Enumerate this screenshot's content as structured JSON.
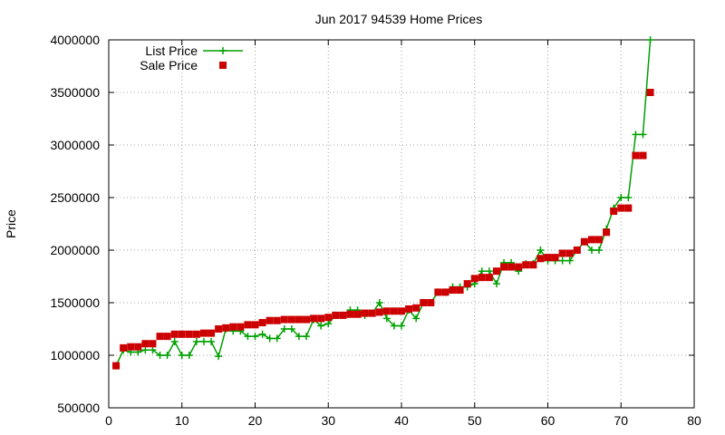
{
  "chart_data": {
    "type": "line",
    "title": "Jun 2017 94539 Home Prices",
    "xlabel": "",
    "ylabel": "Price",
    "xlim": [
      0,
      80
    ],
    "ylim": [
      500000,
      4000000
    ],
    "xticks": [
      0,
      10,
      20,
      30,
      40,
      50,
      60,
      70,
      80
    ],
    "yticks": [
      500000,
      1000000,
      1500000,
      2000000,
      2500000,
      3000000,
      3500000,
      4000000
    ],
    "grid": true,
    "legend_position": "top-left",
    "series": [
      {
        "name": "List Price",
        "style": "line with plus markers",
        "color": "#00a000",
        "points": [
          [
            1,
            900000
          ],
          [
            2,
            1050000
          ],
          [
            3,
            1030000
          ],
          [
            4,
            1030000
          ],
          [
            5,
            1050000
          ],
          [
            6,
            1050000
          ],
          [
            7,
            1000000
          ],
          [
            8,
            1000000
          ],
          [
            9,
            1130000
          ],
          [
            10,
            1000000
          ],
          [
            11,
            1000000
          ],
          [
            12,
            1130000
          ],
          [
            13,
            1130000
          ],
          [
            14,
            1130000
          ],
          [
            15,
            990000
          ],
          [
            16,
            1250000
          ],
          [
            17,
            1230000
          ],
          [
            18,
            1230000
          ],
          [
            19,
            1180000
          ],
          [
            20,
            1180000
          ],
          [
            21,
            1200000
          ],
          [
            22,
            1160000
          ],
          [
            23,
            1160000
          ],
          [
            24,
            1250000
          ],
          [
            25,
            1250000
          ],
          [
            26,
            1180000
          ],
          [
            27,
            1180000
          ],
          [
            28,
            1340000
          ],
          [
            29,
            1280000
          ],
          [
            30,
            1300000
          ],
          [
            31,
            1380000
          ],
          [
            32,
            1380000
          ],
          [
            33,
            1430000
          ],
          [
            34,
            1430000
          ],
          [
            35,
            1380000
          ],
          [
            36,
            1400000
          ],
          [
            37,
            1500000
          ],
          [
            38,
            1350000
          ],
          [
            39,
            1280000
          ],
          [
            40,
            1280000
          ],
          [
            41,
            1430000
          ],
          [
            42,
            1350000
          ],
          [
            43,
            1500000
          ],
          [
            44,
            1500000
          ],
          [
            45,
            1600000
          ],
          [
            46,
            1600000
          ],
          [
            47,
            1650000
          ],
          [
            48,
            1650000
          ],
          [
            49,
            1650000
          ],
          [
            50,
            1680000
          ],
          [
            51,
            1800000
          ],
          [
            52,
            1800000
          ],
          [
            53,
            1680000
          ],
          [
            54,
            1880000
          ],
          [
            55,
            1880000
          ],
          [
            56,
            1800000
          ],
          [
            57,
            1870000
          ],
          [
            58,
            1870000
          ],
          [
            59,
            2000000
          ],
          [
            60,
            1900000
          ],
          [
            61,
            1900000
          ],
          [
            62,
            1900000
          ],
          [
            63,
            1900000
          ],
          [
            64,
            2000000
          ],
          [
            65,
            2080000
          ],
          [
            66,
            2000000
          ],
          [
            67,
            2000000
          ],
          [
            68,
            2200000
          ],
          [
            69,
            2400000
          ],
          [
            70,
            2500000
          ],
          [
            71,
            2500000
          ],
          [
            72,
            3100000
          ],
          [
            73,
            3100000
          ],
          [
            74,
            4000000
          ]
        ]
      },
      {
        "name": "Sale Price",
        "style": "square markers",
        "color": "#cc0000",
        "points": [
          [
            1,
            900000
          ],
          [
            2,
            1070000
          ],
          [
            3,
            1080000
          ],
          [
            4,
            1080000
          ],
          [
            5,
            1110000
          ],
          [
            6,
            1110000
          ],
          [
            7,
            1180000
          ],
          [
            8,
            1180000
          ],
          [
            9,
            1200000
          ],
          [
            10,
            1200000
          ],
          [
            11,
            1200000
          ],
          [
            12,
            1200000
          ],
          [
            13,
            1210000
          ],
          [
            14,
            1210000
          ],
          [
            15,
            1250000
          ],
          [
            16,
            1260000
          ],
          [
            17,
            1270000
          ],
          [
            18,
            1270000
          ],
          [
            19,
            1290000
          ],
          [
            20,
            1290000
          ],
          [
            21,
            1310000
          ],
          [
            22,
            1330000
          ],
          [
            23,
            1330000
          ],
          [
            24,
            1340000
          ],
          [
            25,
            1340000
          ],
          [
            26,
            1340000
          ],
          [
            27,
            1340000
          ],
          [
            28,
            1350000
          ],
          [
            29,
            1350000
          ],
          [
            30,
            1360000
          ],
          [
            31,
            1380000
          ],
          [
            32,
            1380000
          ],
          [
            33,
            1390000
          ],
          [
            34,
            1390000
          ],
          [
            35,
            1400000
          ],
          [
            36,
            1400000
          ],
          [
            37,
            1410000
          ],
          [
            38,
            1420000
          ],
          [
            39,
            1420000
          ],
          [
            40,
            1420000
          ],
          [
            41,
            1440000
          ],
          [
            42,
            1450000
          ],
          [
            43,
            1500000
          ],
          [
            44,
            1500000
          ],
          [
            45,
            1600000
          ],
          [
            46,
            1600000
          ],
          [
            47,
            1620000
          ],
          [
            48,
            1620000
          ],
          [
            49,
            1680000
          ],
          [
            50,
            1730000
          ],
          [
            51,
            1740000
          ],
          [
            52,
            1740000
          ],
          [
            53,
            1800000
          ],
          [
            54,
            1840000
          ],
          [
            55,
            1840000
          ],
          [
            56,
            1840000
          ],
          [
            57,
            1860000
          ],
          [
            58,
            1860000
          ],
          [
            59,
            1920000
          ],
          [
            60,
            1930000
          ],
          [
            61,
            1930000
          ],
          [
            62,
            1970000
          ],
          [
            63,
            1970000
          ],
          [
            64,
            2000000
          ],
          [
            65,
            2080000
          ],
          [
            66,
            2100000
          ],
          [
            67,
            2100000
          ],
          [
            68,
            2170000
          ],
          [
            69,
            2370000
          ],
          [
            70,
            2400000
          ],
          [
            71,
            2400000
          ],
          [
            72,
            2900000
          ],
          [
            73,
            2900000
          ],
          [
            74,
            3500000
          ]
        ]
      }
    ]
  }
}
